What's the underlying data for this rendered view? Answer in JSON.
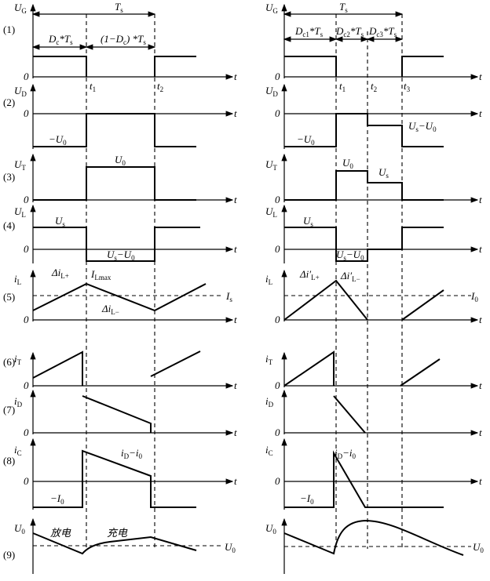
{
  "row_numbers": [
    "(1)",
    "(2)",
    "(3)",
    "(4)",
    "(5)",
    "(6)",
    "(7)",
    "(8)",
    "(9)"
  ],
  "left_panel": {
    "labels": [
      [
        "U",
        "G"
      ],
      [
        "T",
        "s"
      ],
      [
        "D",
        "c",
        "*T",
        "s"
      ],
      [
        "(1−D",
        "c",
        ") *T",
        "s"
      ],
      [
        "0"
      ],
      [
        "t"
      ],
      [
        "t",
        "1"
      ],
      [
        "t",
        "2"
      ],
      [
        "U",
        "D"
      ],
      [
        "0"
      ],
      [
        "t"
      ],
      [
        "−U",
        "0"
      ],
      [
        "U",
        "T"
      ],
      [
        "0"
      ],
      [
        "t"
      ],
      [
        "U",
        "0"
      ],
      [
        "U",
        "L"
      ],
      [
        "0"
      ],
      [
        "t"
      ],
      [
        "U",
        "s"
      ],
      [
        "U",
        "s",
        "−U",
        "0"
      ],
      [
        "i",
        "L"
      ],
      [
        "Δi",
        "L+"
      ],
      [
        "I",
        "Lmax"
      ],
      [
        "Δi",
        "L−"
      ],
      [
        "I",
        "s"
      ],
      [
        "0"
      ],
      [
        "t"
      ],
      [
        "i",
        "T"
      ],
      [
        "0"
      ],
      [
        "t"
      ],
      [
        "i",
        "D"
      ],
      [
        "0"
      ],
      [
        "t"
      ],
      [
        "i",
        "C"
      ],
      [
        "i",
        "D",
        "−i",
        "0"
      ],
      [
        "0"
      ],
      [
        "t"
      ],
      [
        "−I",
        "0"
      ],
      [
        "U",
        "0"
      ],
      [
        "放电"
      ],
      [
        "充电"
      ],
      [
        "U",
        "0"
      ]
    ]
  },
  "right_panel": {
    "labels": [
      [
        "U",
        "G"
      ],
      [
        "T",
        "s"
      ],
      [
        "D",
        "c1",
        "*T",
        "s"
      ],
      [
        "D",
        "c2",
        "*T",
        "s"
      ],
      [
        "D",
        "c3",
        "*T",
        "s"
      ],
      [
        "0"
      ],
      [
        "t"
      ],
      [
        "t",
        "1"
      ],
      [
        "t",
        "2"
      ],
      [
        "t",
        "3"
      ],
      [
        "U",
        "D"
      ],
      [
        "0"
      ],
      [
        "t"
      ],
      [
        "−U",
        "0"
      ],
      [
        "U",
        "s",
        "−U",
        "0"
      ],
      [
        "U",
        "T"
      ],
      [
        "0"
      ],
      [
        "t"
      ],
      [
        "U",
        "0"
      ],
      [
        "U",
        "s"
      ],
      [
        "U",
        "L"
      ],
      [
        "0"
      ],
      [
        "t"
      ],
      [
        "U",
        "s"
      ],
      [
        "U",
        "s",
        "−U",
        "0"
      ],
      [
        "i",
        "L"
      ],
      [
        "Δi′",
        "L+"
      ],
      [
        "Δi′",
        "L−"
      ],
      [
        "I",
        "0"
      ],
      [
        "0"
      ],
      [
        "t"
      ],
      [
        "i",
        "T"
      ],
      [
        "0"
      ],
      [
        "t"
      ],
      [
        "i",
        "D"
      ],
      [
        "0"
      ],
      [
        "t"
      ],
      [
        "i",
        "C"
      ],
      [
        "i",
        "D",
        "−i",
        "0"
      ],
      [
        "0"
      ],
      [
        "t"
      ],
      [
        "−I",
        "0"
      ],
      [
        "U",
        "0"
      ],
      [
        "U",
        "0"
      ]
    ]
  }
}
